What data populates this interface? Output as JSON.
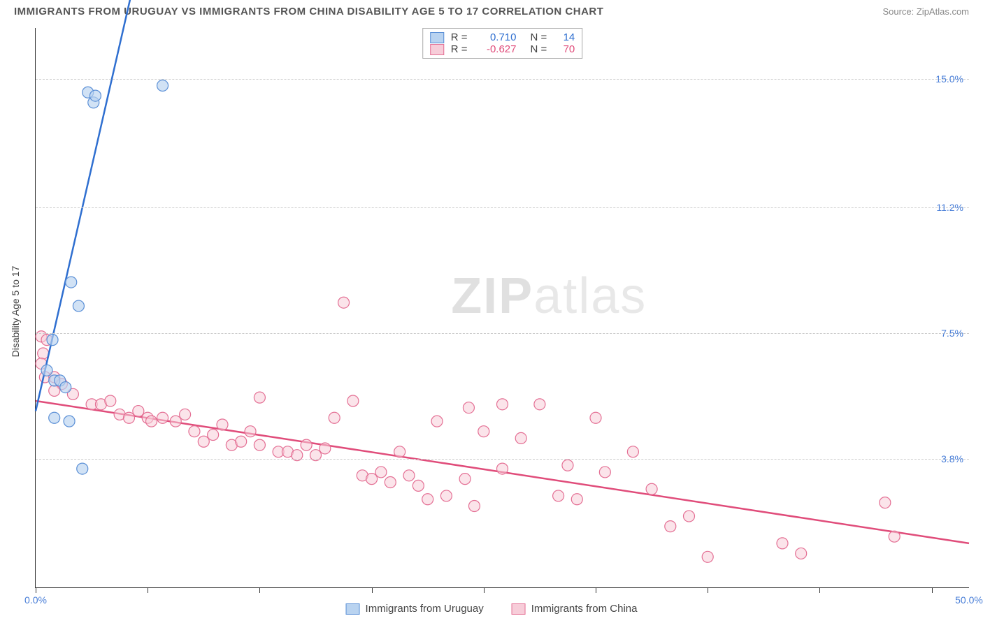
{
  "header": {
    "title": "IMMIGRANTS FROM URUGUAY VS IMMIGRANTS FROM CHINA DISABILITY AGE 5 TO 17 CORRELATION CHART",
    "source": "Source: ZipAtlas.com"
  },
  "ylabel": "Disability Age 5 to 17",
  "watermark_zip": "ZIP",
  "watermark_atlas": "atlas",
  "chart": {
    "type": "scatter",
    "background_color": "#ffffff",
    "grid_color": "#cccccc",
    "axis_color": "#333333",
    "xlim": [
      0,
      50
    ],
    "ylim": [
      0,
      16.5
    ],
    "xtick_positions": [
      0,
      6,
      12,
      18,
      24,
      30,
      36,
      42,
      48
    ],
    "xtick_labels_left": "0.0%",
    "xtick_labels_right": "50.0%",
    "ytick_positions": [
      3.8,
      7.5,
      11.2,
      15.0
    ],
    "ytick_labels": [
      "3.8%",
      "7.5%",
      "11.2%",
      "15.0%"
    ],
    "series": {
      "uruguay": {
        "label": "Immigrants from Uruguay",
        "stats_r": "0.710",
        "stats_n": "14",
        "fill": "#b9d3f0",
        "stroke": "#5a8fd6",
        "line_color": "#2f6fd0",
        "line_width": 2.5,
        "marker_radius": 8,
        "marker_opacity": 0.65,
        "line_p1": [
          0.0,
          5.2
        ],
        "line_p2": [
          7.0,
          22.0
        ],
        "points": [
          [
            2.8,
            14.6
          ],
          [
            3.1,
            14.3
          ],
          [
            3.2,
            14.5
          ],
          [
            6.8,
            14.8
          ],
          [
            1.9,
            9.0
          ],
          [
            2.3,
            8.3
          ],
          [
            0.9,
            7.3
          ],
          [
            0.6,
            6.4
          ],
          [
            1.0,
            6.1
          ],
          [
            1.3,
            6.1
          ],
          [
            1.6,
            5.9
          ],
          [
            1.0,
            5.0
          ],
          [
            1.8,
            4.9
          ],
          [
            2.5,
            3.5
          ]
        ]
      },
      "china": {
        "label": "Immigrants from China",
        "stats_r": "-0.627",
        "stats_n": "70",
        "fill": "#f7cdd9",
        "stroke": "#e46f94",
        "line_color": "#e04c7a",
        "line_width": 2.5,
        "marker_radius": 8,
        "marker_opacity": 0.55,
        "line_p1": [
          0.0,
          5.5
        ],
        "line_p2": [
          50.0,
          1.3
        ],
        "points": [
          [
            0.3,
            7.4
          ],
          [
            0.6,
            7.3
          ],
          [
            0.4,
            6.9
          ],
          [
            0.3,
            6.6
          ],
          [
            0.5,
            6.2
          ],
          [
            1.0,
            6.2
          ],
          [
            1.4,
            6.0
          ],
          [
            1.0,
            5.8
          ],
          [
            2.0,
            5.7
          ],
          [
            3.0,
            5.4
          ],
          [
            3.5,
            5.4
          ],
          [
            4.0,
            5.5
          ],
          [
            4.5,
            5.1
          ],
          [
            5.0,
            5.0
          ],
          [
            5.5,
            5.2
          ],
          [
            6.0,
            5.0
          ],
          [
            6.2,
            4.9
          ],
          [
            6.8,
            5.0
          ],
          [
            7.5,
            4.9
          ],
          [
            8.0,
            5.1
          ],
          [
            8.5,
            4.6
          ],
          [
            9.0,
            4.3
          ],
          [
            9.5,
            4.5
          ],
          [
            10.0,
            4.8
          ],
          [
            10.5,
            4.2
          ],
          [
            11.0,
            4.3
          ],
          [
            11.5,
            4.6
          ],
          [
            12.0,
            4.2
          ],
          [
            12.0,
            5.6
          ],
          [
            13.0,
            4.0
          ],
          [
            13.5,
            4.0
          ],
          [
            14.0,
            3.9
          ],
          [
            14.5,
            4.2
          ],
          [
            15.0,
            3.9
          ],
          [
            15.5,
            4.1
          ],
          [
            16.0,
            5.0
          ],
          [
            16.5,
            8.4
          ],
          [
            17.0,
            5.5
          ],
          [
            17.5,
            3.3
          ],
          [
            18.0,
            3.2
          ],
          [
            18.5,
            3.4
          ],
          [
            19.0,
            3.1
          ],
          [
            19.5,
            4.0
          ],
          [
            20.0,
            3.3
          ],
          [
            20.5,
            3.0
          ],
          [
            21.0,
            2.6
          ],
          [
            21.5,
            4.9
          ],
          [
            22.0,
            2.7
          ],
          [
            23.0,
            3.2
          ],
          [
            23.2,
            5.3
          ],
          [
            23.5,
            2.4
          ],
          [
            24.0,
            4.6
          ],
          [
            25.0,
            3.5
          ],
          [
            25.0,
            5.4
          ],
          [
            26.0,
            4.4
          ],
          [
            27.0,
            5.4
          ],
          [
            28.0,
            2.7
          ],
          [
            28.5,
            3.6
          ],
          [
            29.0,
            2.6
          ],
          [
            30.0,
            5.0
          ],
          [
            30.5,
            3.4
          ],
          [
            32.0,
            4.0
          ],
          [
            33.0,
            2.9
          ],
          [
            34.0,
            1.8
          ],
          [
            35.0,
            2.1
          ],
          [
            36.0,
            0.9
          ],
          [
            40.0,
            1.3
          ],
          [
            41.0,
            1.0
          ],
          [
            45.5,
            2.5
          ],
          [
            46.0,
            1.5
          ]
        ]
      }
    }
  },
  "r_label": "R  =",
  "n_label": "N  ="
}
